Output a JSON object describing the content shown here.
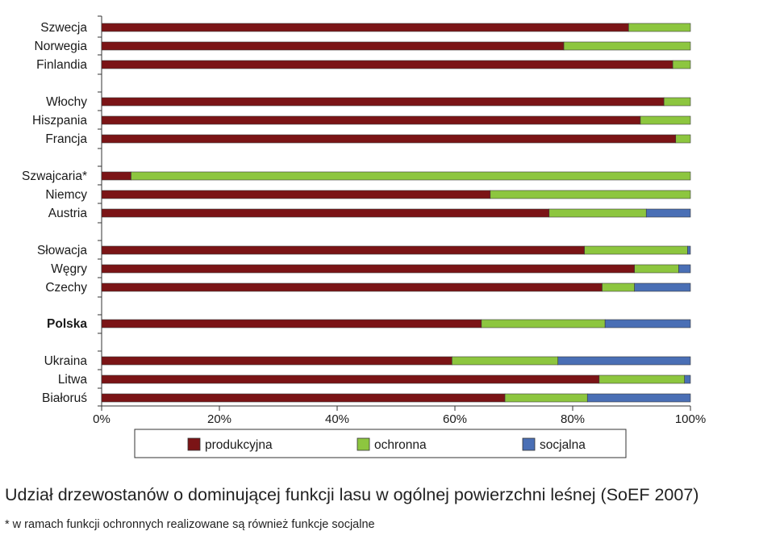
{
  "chart_data": {
    "type": "bar",
    "orientation": "horizontal",
    "stacked": true,
    "categories": [
      "Szwecja",
      "Norwegia",
      "Finlandia",
      "Włochy",
      "Hiszpania",
      "Francja",
      "Szwajcaria*",
      "Niemcy",
      "Austria",
      "Słowacja",
      "Węgry",
      "Czechy",
      "Polska",
      "Ukraina",
      "Litwa",
      "Białoruś"
    ],
    "groups": [
      [
        0,
        1,
        2
      ],
      [
        3,
        4,
        5
      ],
      [
        6,
        7,
        8
      ],
      [
        9,
        10,
        11
      ],
      [
        12
      ],
      [
        13,
        14,
        15
      ]
    ],
    "bold_categories": [
      "Polska"
    ],
    "series": [
      {
        "name": "produkcyjna",
        "color": "#7b1416",
        "values": [
          89.5,
          78.5,
          97,
          95.5,
          91.5,
          97.5,
          5,
          66,
          76,
          82,
          90.5,
          85,
          64.5,
          59.5,
          84.5,
          68.5
        ]
      },
      {
        "name": "ochronna",
        "color": "#8dc63f",
        "values": [
          10.5,
          21.5,
          3,
          4.5,
          8.5,
          2.5,
          95,
          34,
          16.5,
          17.5,
          7.5,
          5.5,
          21,
          18,
          14.5,
          14
        ]
      },
      {
        "name": "socjalna",
        "color": "#4a6fb5",
        "values": [
          0,
          0,
          0,
          0,
          0,
          0,
          0,
          0,
          7.5,
          0.5,
          2,
          9.5,
          14.5,
          22.5,
          1,
          17.5
        ]
      }
    ],
    "x_ticks": [
      "0%",
      "20%",
      "40%",
      "60%",
      "80%",
      "100%"
    ],
    "xlim": [
      0,
      100
    ],
    "legend_position": "bottom",
    "grid": false
  },
  "caption": "Udział drzewostanów o dominującej funkcji lasu w ogólnej powierzchni leśnej (SoEF 2007)",
  "footnote": "* w ramach funkcji ochronnych realizowane są również funkcje socjalne"
}
